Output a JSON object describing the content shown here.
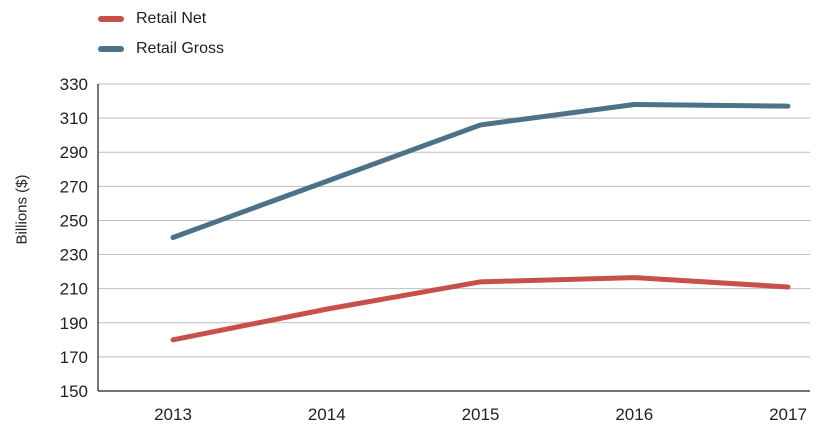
{
  "chart_data": {
    "type": "line",
    "title": "",
    "xlabel": "",
    "ylabel": "Billions ($)",
    "categories": [
      "2013",
      "2014",
      "2015",
      "2016",
      "2017"
    ],
    "ylim": [
      150,
      330
    ],
    "yticks": [
      150,
      170,
      190,
      210,
      230,
      250,
      270,
      290,
      310,
      330
    ],
    "grid": "horizontal",
    "legend_position": "top-left",
    "series": [
      {
        "name": "Retail Net",
        "color": "#c8504a",
        "values": [
          180,
          198,
          214,
          216.5,
          211
        ]
      },
      {
        "name": "Retail Gross",
        "color": "#4d7186",
        "values": [
          240,
          273,
          306,
          318,
          317
        ]
      }
    ]
  }
}
